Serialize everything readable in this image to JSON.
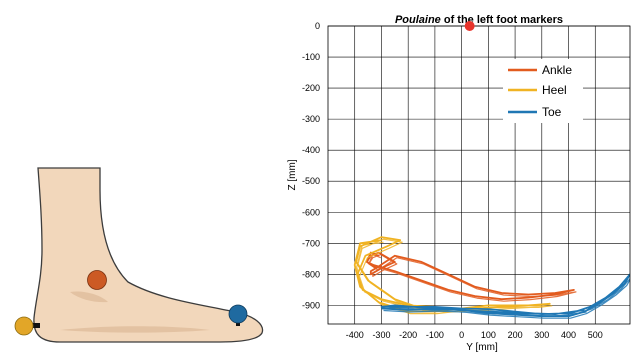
{
  "chart_data": {
    "type": "line",
    "title_prefix": "Poulaine",
    "title_suffix": " of the left foot markers",
    "xlabel": "Y [mm]",
    "ylabel": "Z [mm]",
    "xlim": [
      -500,
      630
    ],
    "ylim": [
      -960,
      0
    ],
    "x_ticks": [
      -400,
      -300,
      -200,
      -100,
      0,
      100,
      200,
      300,
      400,
      500
    ],
    "y_ticks": [
      0,
      -100,
      -200,
      -300,
      -400,
      -500,
      -600,
      -700,
      -800,
      -900
    ],
    "grid": true,
    "legend_position": "top-right",
    "origin_marker": {
      "x": 30,
      "y": 0,
      "color": "#e8342c"
    },
    "series": [
      {
        "name": "Ankle",
        "color": "#e25b1e",
        "x": [
          -310,
          -340,
          -355,
          -320,
          -250,
          -150,
          -50,
          50,
          150,
          250,
          350,
          420,
          350,
          250,
          150,
          50,
          -50,
          -150,
          -250,
          -330,
          -355,
          -340,
          -310,
          -280,
          -250,
          -300,
          -340,
          -340,
          -300
        ],
        "y": [
          -740,
          -730,
          -760,
          -780,
          -740,
          -760,
          -800,
          -840,
          -860,
          -865,
          -860,
          -850,
          -865,
          -875,
          -880,
          -870,
          -850,
          -820,
          -790,
          -770,
          -760,
          -740,
          -730,
          -745,
          -760,
          -780,
          -800,
          -790,
          -770
        ]
      },
      {
        "name": "Heel",
        "color": "#f0b323",
        "x": [
          -300,
          -380,
          -400,
          -380,
          -310,
          -200,
          -100,
          0,
          100,
          200,
          280,
          330,
          250,
          150,
          50,
          -50,
          -150,
          -250,
          -350,
          -395,
          -380,
          -300,
          -230,
          -280,
          -360,
          -390,
          -370,
          -300,
          -200,
          -100
        ],
        "y": [
          -690,
          -700,
          -770,
          -840,
          -890,
          -920,
          -920,
          -910,
          -900,
          -900,
          -900,
          -895,
          -900,
          -905,
          -910,
          -915,
          -910,
          -880,
          -820,
          -760,
          -710,
          -680,
          -690,
          -710,
          -740,
          -800,
          -850,
          -880,
          -900,
          -905
        ]
      },
      {
        "name": "Toe",
        "color": "#1f77b4",
        "x": [
          -300,
          -200,
          -100,
          0,
          100,
          200,
          300,
          400,
          460,
          520,
          570,
          610,
          630,
          590,
          540,
          480,
          410,
          300,
          200,
          100,
          0,
          -100,
          -200,
          -300,
          -250,
          -100,
          50,
          200,
          350,
          460
        ],
        "y": [
          -910,
          -915,
          -912,
          -915,
          -925,
          -930,
          -935,
          -935,
          -920,
          -890,
          -860,
          -830,
          -800,
          -840,
          -875,
          -905,
          -925,
          -928,
          -920,
          -912,
          -910,
          -905,
          -905,
          -905,
          -900,
          -910,
          -918,
          -924,
          -928,
          -915
        ]
      }
    ]
  },
  "illustration": {
    "markers": [
      {
        "name": "Heel",
        "color": "#e2a628"
      },
      {
        "name": "Ankle",
        "color": "#cc5a24"
      },
      {
        "name": "Toe",
        "color": "#1f6aa0"
      }
    ]
  }
}
